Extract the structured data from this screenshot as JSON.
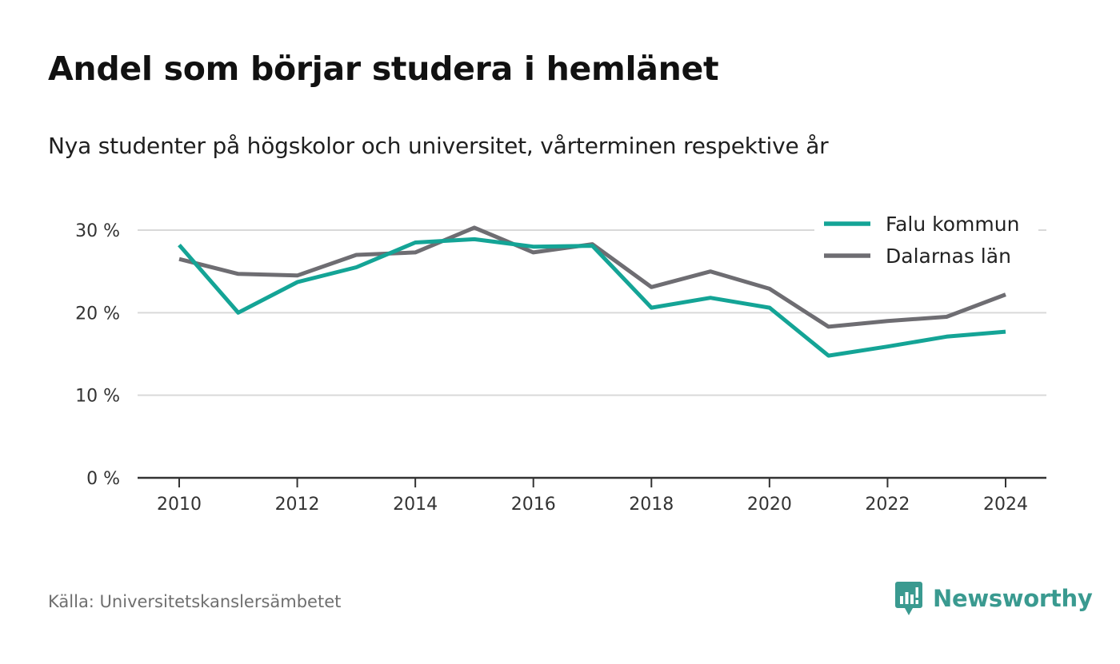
{
  "title": "Andel som börjar studera i hemlänet",
  "subtitle": "Nya studenter på högskolor och universitet, vårterminen respektive år",
  "source": "Källa: Universitetskanslersämbetet",
  "brand": "Newsworthy",
  "brand_icon": "newsworthy-chart-bubble-icon",
  "chart_data": {
    "type": "line",
    "x": [
      2010,
      2011,
      2012,
      2013,
      2014,
      2015,
      2016,
      2017,
      2018,
      2019,
      2020,
      2021,
      2022,
      2023,
      2024
    ],
    "xticks": [
      2010,
      2012,
      2014,
      2016,
      2018,
      2020,
      2022,
      2024
    ],
    "yticks": [
      0,
      10,
      20,
      30
    ],
    "ytick_suffix": " %",
    "ylim": [
      0,
      30
    ],
    "grid": true,
    "legend": "top-right",
    "series": [
      {
        "name": "Falu kommun",
        "color": "#14a496",
        "values": [
          28.2,
          20.0,
          23.7,
          25.5,
          28.5,
          28.9,
          28.0,
          28.1,
          20.6,
          21.8,
          20.6,
          14.8,
          15.9,
          17.1,
          17.7
        ]
      },
      {
        "name": "Dalarnas län",
        "color": "#6e6d72",
        "values": [
          26.5,
          24.7,
          24.5,
          27.0,
          27.3,
          30.3,
          27.3,
          28.3,
          23.1,
          25.0,
          22.9,
          18.3,
          19.0,
          19.5,
          22.2
        ]
      }
    ]
  }
}
